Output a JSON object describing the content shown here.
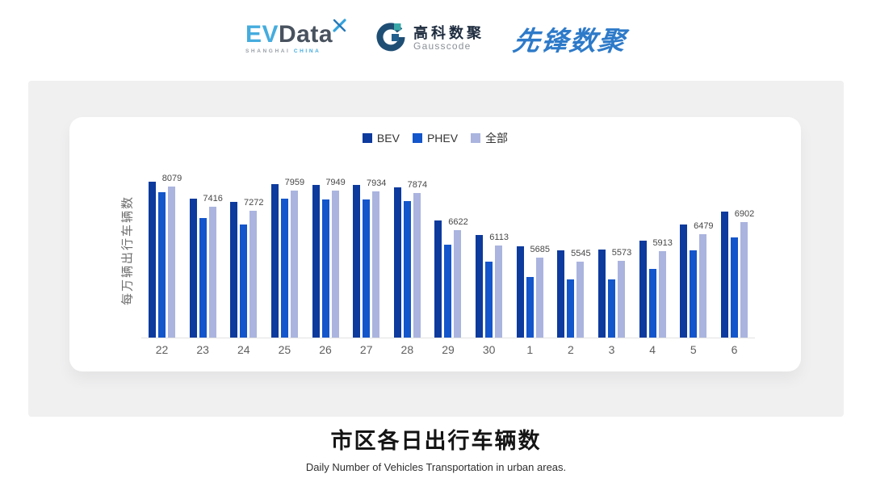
{
  "header": {
    "evdata": {
      "ev": "EV",
      "data": "Data",
      "sub_left": "SHANGHAI",
      "sub_right": "CHINA"
    },
    "gausscode": {
      "cn": "高科数聚",
      "en": "Gausscode"
    },
    "pioneer": {
      "text": "先锋数聚"
    }
  },
  "colors": {
    "bev": "#0d3a9d",
    "phev": "#1355cb",
    "all": "#aab4de",
    "evdata_blue": "#45acde",
    "evdata_dark": "#49525f",
    "gausscode_navy": "#1f4e74",
    "gausscode_teal": "#3aa8a8",
    "pioneer_blue": "#2d7ac9",
    "panel_gray": "#f0f0f1"
  },
  "chart_data": {
    "type": "bar",
    "title": "市区各日出行车辆数",
    "subtitle": "Daily Number of Vehicles Transportation in urban areas.",
    "ylabel": "每万辆出行车辆数",
    "xlabel": "",
    "categories": [
      "22",
      "23",
      "24",
      "25",
      "26",
      "27",
      "28",
      "29",
      "30",
      "1",
      "2",
      "3",
      "4",
      "5",
      "6"
    ],
    "series": [
      {
        "name": "BEV",
        "color": "#0d3a9d",
        "values": [
          8240,
          7690,
          7560,
          8160,
          8140,
          8150,
          8050,
          6940,
          6450,
          6080,
          5930,
          5960,
          6270,
          6810,
          7250
        ]
      },
      {
        "name": "PHEV",
        "color": "#1355cb",
        "values": [
          7890,
          7020,
          6800,
          7670,
          7660,
          7640,
          7590,
          6120,
          5550,
          5050,
          4950,
          4950,
          5320,
          5950,
          6360
        ]
      },
      {
        "name": "全部",
        "color": "#aab4de",
        "data_labels": true,
        "values": [
          8079,
          7416,
          7272,
          7959,
          7949,
          7934,
          7874,
          6622,
          6113,
          5685,
          5545,
          5573,
          5913,
          6479,
          6902
        ]
      }
    ],
    "ylim": [
      3000,
      8600
    ],
    "grid": false,
    "legend_position": "top",
    "labels_shown_on_series": "全部"
  }
}
